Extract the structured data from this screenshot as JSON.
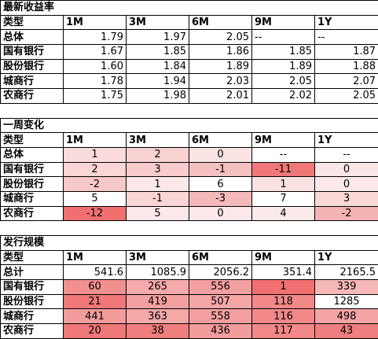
{
  "sections": [
    {
      "title": "最新收益率",
      "header": [
        "类型",
        "1M",
        "3M",
        "6M",
        "9M",
        "1Y"
      ],
      "rows": [
        {
          "label": "总体",
          "cells": [
            "1.79",
            "1.97",
            "2.05",
            "--",
            "--"
          ]
        },
        {
          "label": "国有银行",
          "cells": [
            "1.67",
            "1.85",
            "1.86",
            "1.85",
            "1.87"
          ]
        },
        {
          "label": "股份银行",
          "cells": [
            "1.60",
            "1.84",
            "1.89",
            "1.89",
            "1.88"
          ]
        },
        {
          "label": "城商行",
          "cells": [
            "1.78",
            "1.94",
            "2.03",
            "2.05",
            "2.07"
          ]
        },
        {
          "label": "农商行",
          "cells": [
            "1.75",
            "1.98",
            "2.01",
            "2.02",
            "2.05"
          ]
        }
      ]
    },
    {
      "title": "一周变化",
      "header": [
        "类型",
        "1M",
        "3M",
        "6M",
        "9M",
        "1Y"
      ],
      "rows": [
        {
          "label": "总体",
          "cells": [
            "1",
            "2",
            "0",
            "--",
            "--"
          ],
          "colors": [
            "#fadbdb",
            "#f8d2d2",
            "#fbe4e4",
            "#ffffff",
            "#ffffff"
          ]
        },
        {
          "label": "国有银行",
          "cells": [
            "2",
            "3",
            "-1",
            "-11",
            "0"
          ],
          "colors": [
            "#f9d5d5",
            "#f8cccc",
            "#f5c0c0",
            "#f07878",
            "#fbe6e6"
          ]
        },
        {
          "label": "股份银行",
          "cells": [
            "-2",
            "1",
            "6",
            "1",
            "0"
          ],
          "colors": [
            "#f7c8c8",
            "#fce8e8",
            "#ffffff",
            "#fbe0e0",
            "#fce8e8"
          ]
        },
        {
          "label": "城商行",
          "cells": [
            "5",
            "-1",
            "-3",
            "7",
            "3"
          ],
          "colors": [
            "#ffffff",
            "#f9d5d5",
            "#f5b9b9",
            "#ffffff",
            "#fad8d8"
          ]
        },
        {
          "label": "农商行",
          "cells": [
            "-12",
            "5",
            "0",
            "4",
            "-2"
          ],
          "colors": [
            "#f07070",
            "#fce8e8",
            "#fce8e8",
            "#fce9e9",
            "#f4b4b4"
          ]
        }
      ]
    },
    {
      "title": "发行规模",
      "header": [
        "类型",
        "1M",
        "3M",
        "6M",
        "9M",
        "1Y"
      ],
      "total": {
        "label": "总计",
        "cells": [
          "541.6",
          "1085.9",
          "2056.2",
          "351.4",
          "2165.5"
        ]
      },
      "rows": [
        {
          "label": "国有银行",
          "cells": [
            "60",
            "265",
            "556",
            "1",
            "339"
          ],
          "colors": [
            "#f29090",
            "#f6aaaa",
            "#f5a0a0",
            "#f07070",
            "#f7b8b8"
          ]
        },
        {
          "label": "股份银行",
          "cells": [
            "21",
            "419",
            "507",
            "118",
            "1285"
          ],
          "colors": [
            "#f07878",
            "#f3a0a0",
            "#f5a6a6",
            "#f28888",
            "#ffffff"
          ]
        },
        {
          "label": "城商行",
          "cells": [
            "441",
            "363",
            "558",
            "116",
            "498"
          ],
          "colors": [
            "#f39c9c",
            "#f5a8a8",
            "#f4a0a0",
            "#f28888",
            "#f4a4a4"
          ]
        },
        {
          "label": "农商行",
          "cells": [
            "20",
            "38",
            "436",
            "117",
            "43"
          ],
          "colors": [
            "#f07878",
            "#f07e7e",
            "#f39c9c",
            "#f28888",
            "#f07e7e"
          ]
        }
      ]
    }
  ]
}
